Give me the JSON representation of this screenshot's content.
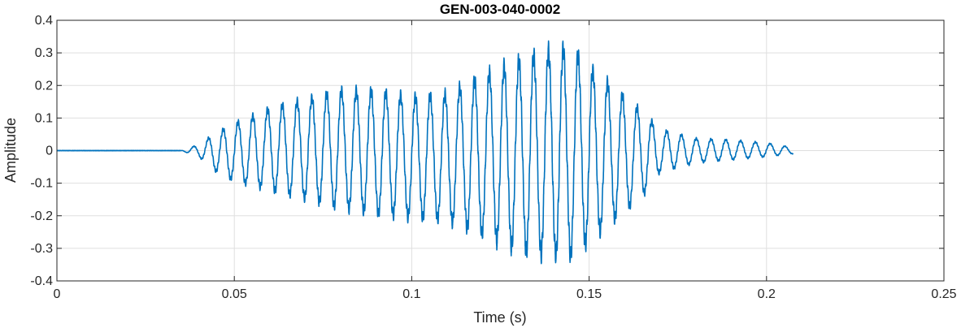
{
  "chart_data": {
    "type": "line",
    "title": "GEN-003-040-0002",
    "xlabel": "Time (s)",
    "ylabel": "Amplitude",
    "xlim": [
      0,
      0.25
    ],
    "ylim": [
      -0.4,
      0.4
    ],
    "grid": true,
    "xticks": [
      0,
      0.05,
      0.1,
      0.15,
      0.2,
      0.25
    ],
    "xtick_labels": [
      "0",
      "0.05",
      "0.1",
      "0.15",
      "0.2",
      "0.25"
    ],
    "yticks": [
      0.4,
      0.3,
      0.2,
      0.1,
      0,
      -0.1,
      -0.2,
      -0.3,
      -0.4
    ],
    "ytick_labels": [
      "0.4",
      "0.3",
      "0.2",
      "0.1",
      "0",
      "-0.1",
      "-0.2",
      "-0.3",
      "-0.4"
    ],
    "line_color": "#0072BD",
    "series": [
      {
        "x": [
          0,
          0.035,
          0.04,
          0.045,
          0.05,
          0.06,
          0.07,
          0.08,
          0.09,
          0.1,
          0.11,
          0.12,
          0.13,
          0.14,
          0.145,
          0.15,
          0.16,
          0.165,
          0.17,
          0.18,
          0.19,
          0.2,
          0.2075
        ],
        "y_max": [
          0.0,
          0.0,
          0.02,
          0.06,
          0.09,
          0.14,
          0.17,
          0.2,
          0.2,
          0.18,
          0.19,
          0.25,
          0.3,
          0.34,
          0.34,
          0.28,
          0.18,
          0.13,
          0.07,
          0.04,
          0.035,
          0.025,
          0.01
        ],
        "y_min": [
          0.0,
          0.0,
          -0.02,
          -0.07,
          -0.1,
          -0.13,
          -0.16,
          -0.19,
          -0.21,
          -0.22,
          -0.23,
          -0.28,
          -0.33,
          -0.35,
          -0.35,
          -0.3,
          -0.2,
          -0.15,
          -0.07,
          -0.04,
          -0.03,
          -0.02,
          -0.01
        ],
        "dominant_frequency_hz": 240
      }
    ]
  }
}
